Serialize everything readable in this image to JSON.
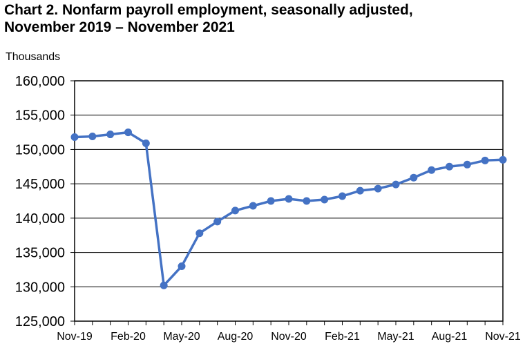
{
  "title_line1": "Chart 2. Nonfarm payroll employment, seasonally adjusted,",
  "title_line2": "November 2019 – November 2021",
  "chart_data": {
    "type": "line",
    "title": "Chart 2. Nonfarm payroll employment, seasonally adjusted, November 2019 – November 2021",
    "ylabel": "Thousands",
    "xlabel": "",
    "ylim": [
      125000,
      160000
    ],
    "yticks": [
      125000,
      130000,
      135000,
      140000,
      145000,
      150000,
      155000,
      160000
    ],
    "ytick_labels": [
      "125,000",
      "130,000",
      "135,000",
      "140,000",
      "145,000",
      "150,000",
      "155,000",
      "160,000"
    ],
    "x": [
      "Nov-19",
      "Dec-19",
      "Jan-20",
      "Feb-20",
      "Mar-20",
      "Apr-20",
      "May-20",
      "Jun-20",
      "Jul-20",
      "Aug-20",
      "Sep-20",
      "Oct-20",
      "Nov-20",
      "Dec-20",
      "Jan-21",
      "Feb-21",
      "Mar-21",
      "Apr-21",
      "May-21",
      "Jun-21",
      "Jul-21",
      "Aug-21",
      "Sep-21",
      "Oct-21",
      "Nov-21"
    ],
    "xtick_labels": [
      "Nov-19",
      "Feb-20",
      "May-20",
      "Aug-20",
      "Nov-20",
      "Feb-21",
      "May-21",
      "Aug-21",
      "Nov-21"
    ],
    "grid": "horizontal",
    "line_color": "#4472C4",
    "series": [
      {
        "values": [
          151800,
          151900,
          152200,
          152500,
          150900,
          130200,
          133000,
          137800,
          139500,
          141100,
          141800,
          142500,
          142800,
          142500,
          142700,
          143200,
          144000,
          144300,
          144900,
          145900,
          147000,
          147500,
          147800,
          148400,
          148500
        ]
      }
    ]
  }
}
